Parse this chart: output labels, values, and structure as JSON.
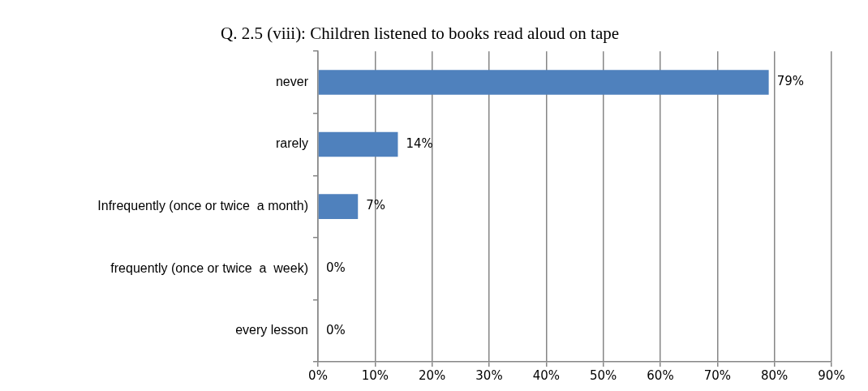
{
  "chart_data": {
    "type": "bar",
    "orientation": "horizontal",
    "title": "Q. 2.5 (viii): Children listened to books read aloud on tape",
    "categories": [
      "never",
      "rarely",
      "Infrequently (once or twice  a month)",
      "frequently (once or twice  a  week)",
      "every lesson"
    ],
    "values": [
      79,
      14,
      7,
      0,
      0
    ],
    "value_labels": [
      "79%",
      "14%",
      "7%",
      "0%",
      "0%"
    ],
    "color": "#4f81bd",
    "xlim": [
      0,
      90
    ],
    "xticks": [
      {
        "value": 0,
        "label": "0%"
      },
      {
        "value": 10,
        "label": "10%"
      },
      {
        "value": 20,
        "label": "20%"
      },
      {
        "value": 30,
        "label": "30%"
      },
      {
        "value": 40,
        "label": "40%"
      },
      {
        "value": 50,
        "label": "50%"
      },
      {
        "value": 60,
        "label": "60%"
      },
      {
        "value": 70,
        "label": "70%"
      },
      {
        "value": 80,
        "label": "80%"
      },
      {
        "value": 90,
        "label": "90%"
      }
    ],
    "grid": "x",
    "legend": false
  }
}
